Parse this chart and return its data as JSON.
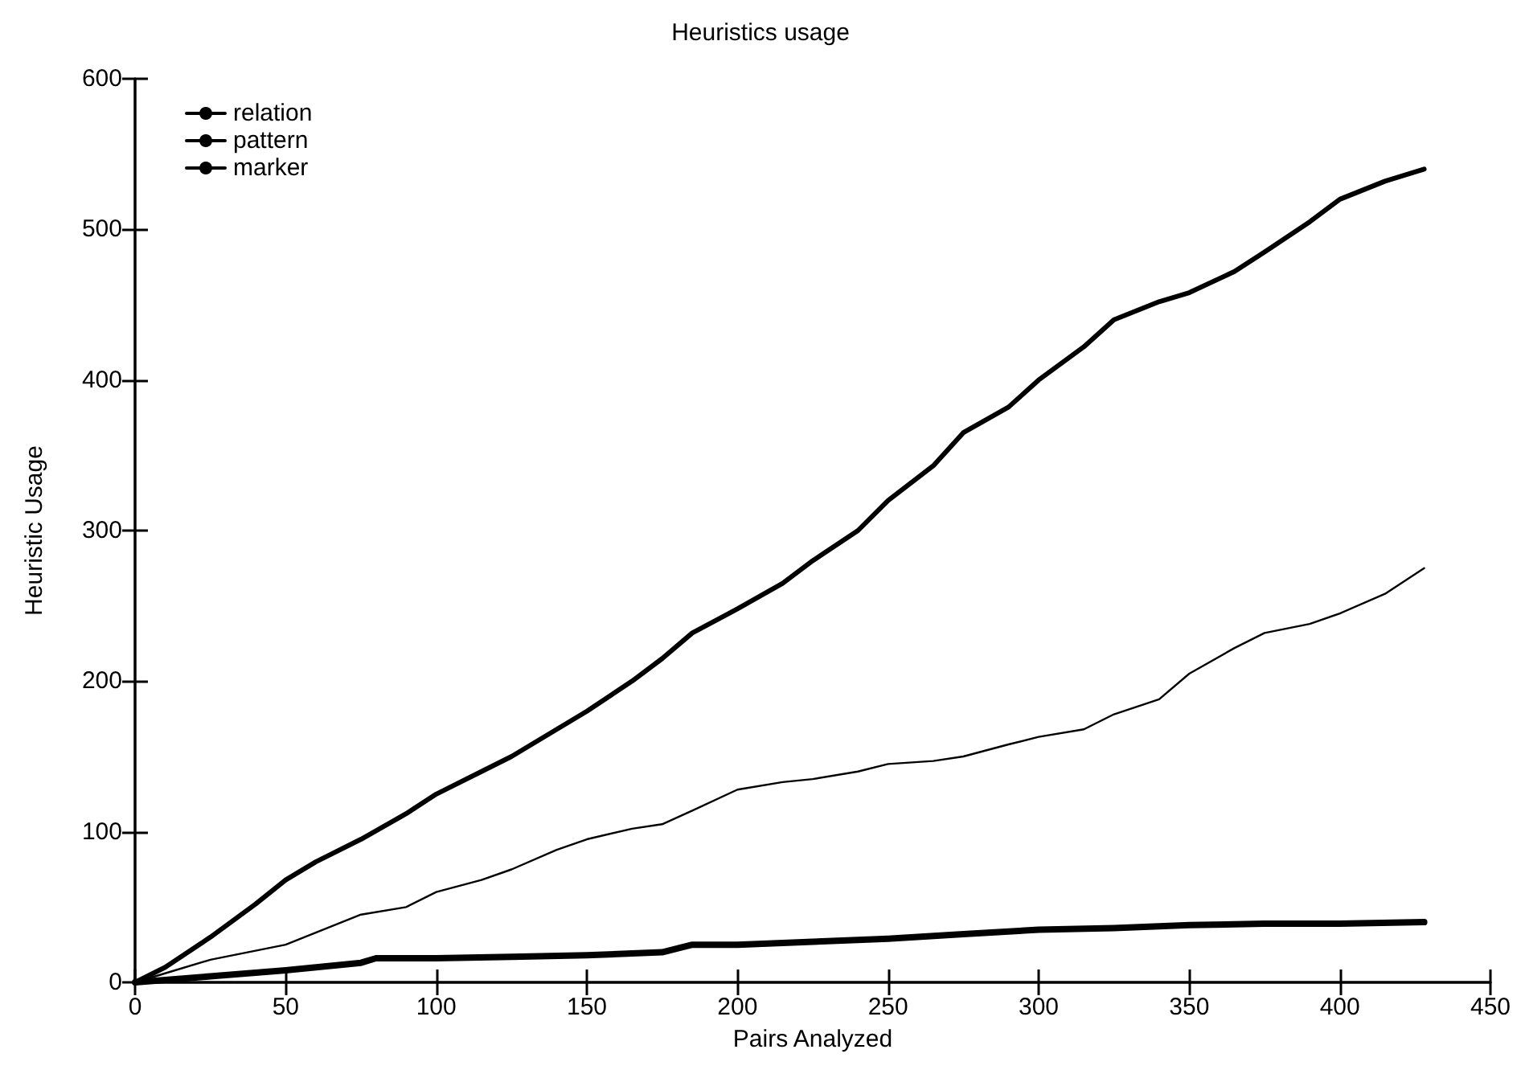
{
  "chart_data": {
    "type": "line",
    "title": "Heuristics usage",
    "xlabel": "Pairs Analyzed",
    "ylabel": "Heuristic Usage",
    "xlim": [
      0,
      450
    ],
    "xticks": [
      0,
      50,
      100,
      150,
      200,
      250,
      300,
      350,
      400,
      450
    ],
    "ylim": [
      0,
      600
    ],
    "yticks": [
      0,
      100,
      200,
      300,
      400,
      500,
      600
    ],
    "grid": false,
    "legend": "top left",
    "marker": "none",
    "series": [
      {
        "name": "relation",
        "color": "#000000",
        "x": [
          0,
          10,
          25,
          40,
          50,
          60,
          75,
          90,
          100,
          115,
          125,
          140,
          150,
          165,
          175,
          185,
          200,
          215,
          225,
          240,
          250,
          265,
          275,
          290,
          300,
          315,
          325,
          340,
          350,
          365,
          375,
          390,
          400,
          415,
          428
        ],
        "values": [
          0,
          6,
          15,
          21,
          25,
          33,
          45,
          50,
          60,
          68,
          75,
          88,
          95,
          102,
          105,
          114,
          128,
          133,
          135,
          140,
          145,
          147,
          150,
          158,
          163,
          168,
          178,
          188,
          205,
          222,
          232,
          238,
          245,
          258,
          275
        ]
      },
      {
        "name": "pattern",
        "color": "#000000",
        "x": [
          0,
          10,
          25,
          40,
          50,
          60,
          75,
          90,
          100,
          115,
          125,
          140,
          150,
          165,
          175,
          185,
          200,
          215,
          225,
          240,
          250,
          265,
          275,
          290,
          300,
          315,
          325,
          340,
          350,
          365,
          375,
          390,
          400,
          415,
          428
        ],
        "values": [
          0,
          10,
          30,
          52,
          68,
          80,
          95,
          112,
          125,
          140,
          150,
          168,
          180,
          200,
          215,
          232,
          248,
          265,
          280,
          300,
          320,
          343,
          365,
          382,
          400,
          422,
          440,
          452,
          458,
          472,
          485,
          505,
          520,
          532,
          540
        ]
      },
      {
        "name": "marker",
        "color": "#000000",
        "x": [
          0,
          25,
          50,
          75,
          80,
          100,
          125,
          150,
          175,
          185,
          200,
          225,
          250,
          275,
          300,
          325,
          350,
          375,
          400,
          428
        ],
        "values": [
          0,
          4,
          8,
          13,
          16,
          16,
          17,
          18,
          20,
          25,
          25,
          27,
          29,
          32,
          35,
          36,
          38,
          39,
          39,
          40
        ]
      }
    ]
  }
}
